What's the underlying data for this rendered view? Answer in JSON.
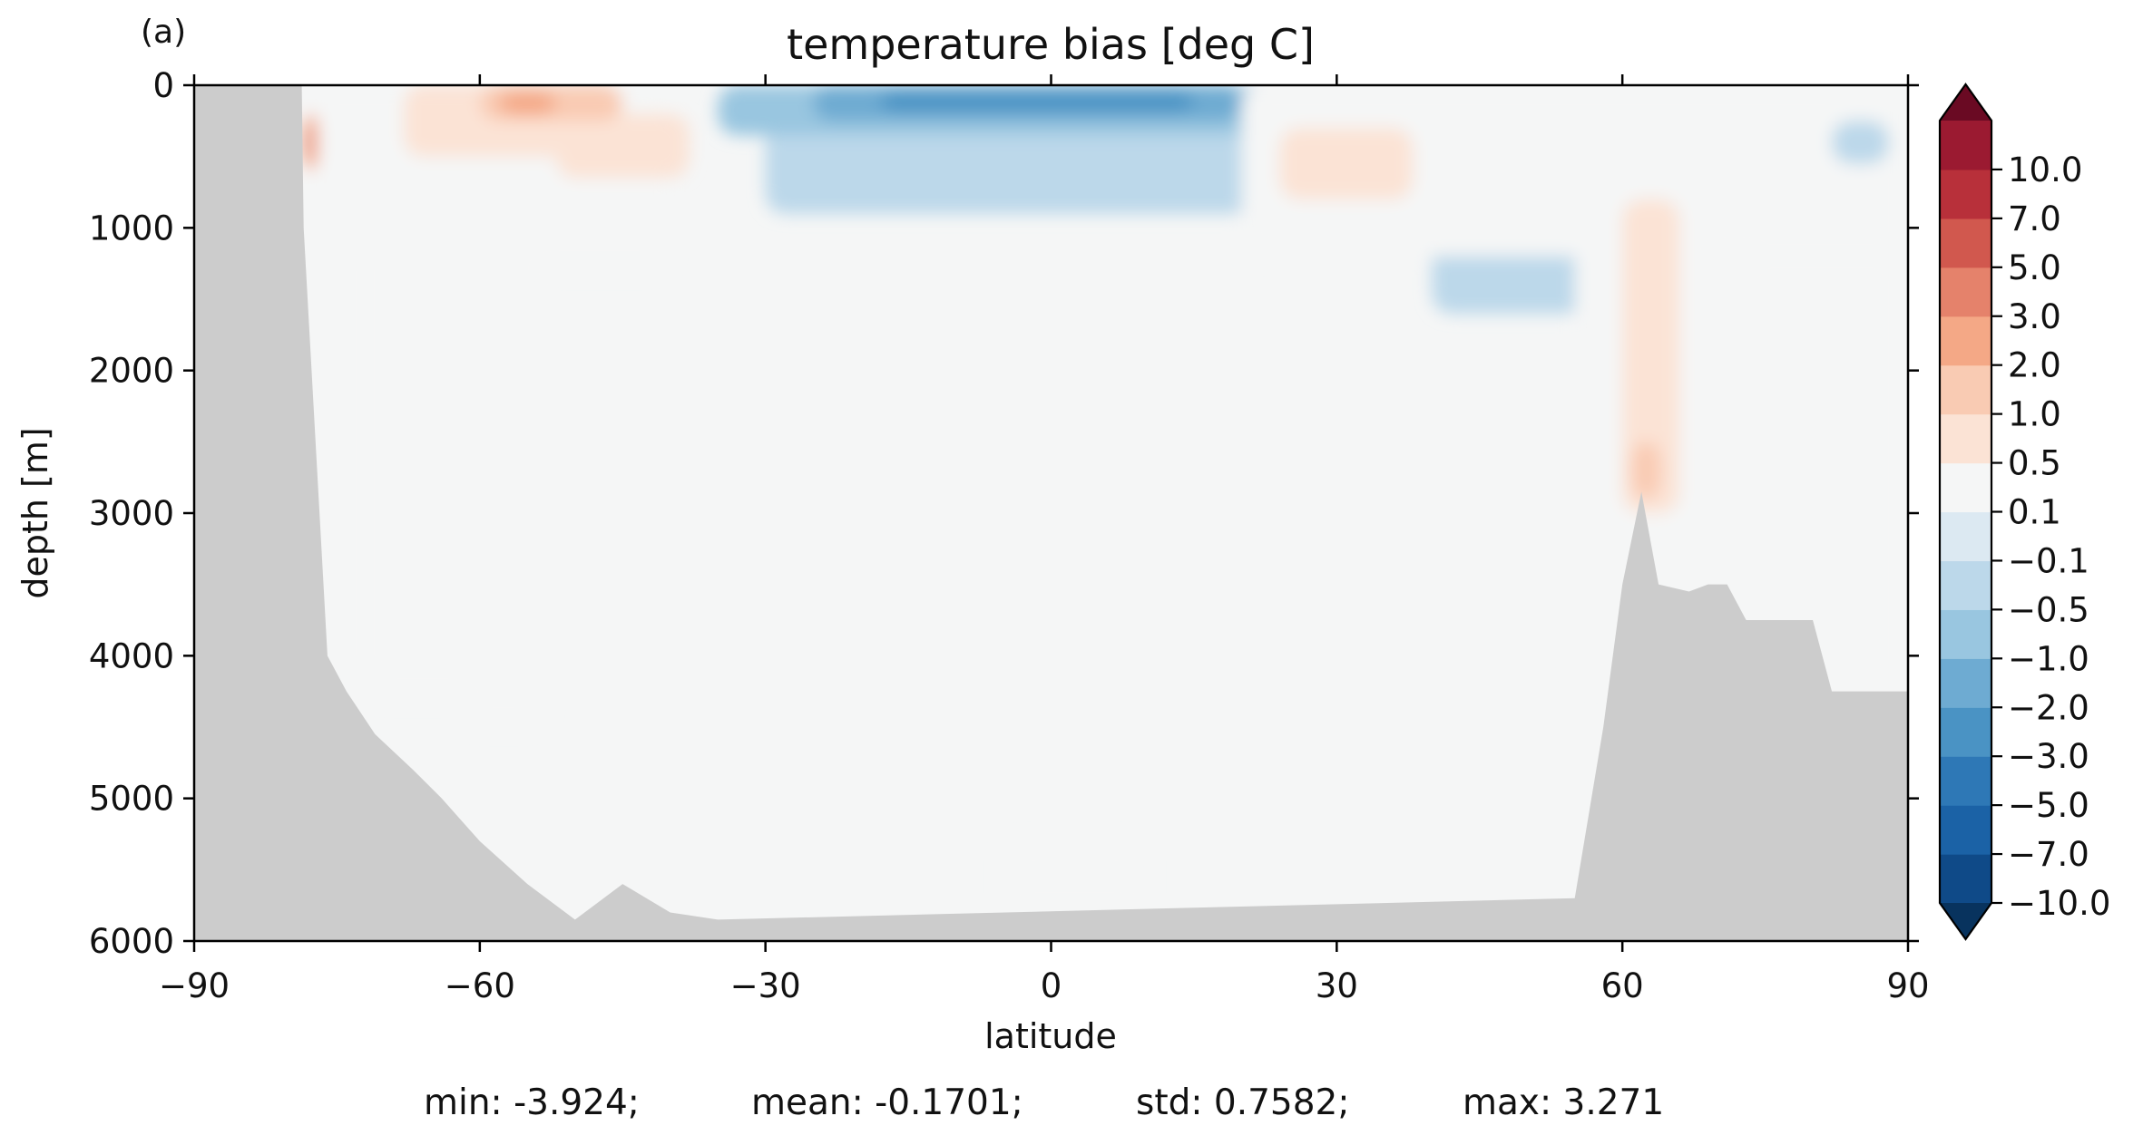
{
  "chart_data": {
    "type": "heatmap",
    "panel_label": "(a)",
    "title": "temperature bias [deg C]",
    "xlabel": "latitude",
    "ylabel": "depth [m]",
    "xlim": [
      -90,
      90
    ],
    "ylim": [
      6000,
      0
    ],
    "y_inverted": true,
    "xticks": [
      -90,
      -60,
      -30,
      0,
      30,
      60,
      90
    ],
    "xtick_labels": [
      "−90",
      "−60",
      "−30",
      "0",
      "30",
      "60",
      "90"
    ],
    "yticks": [
      0,
      1000,
      2000,
      3000,
      4000,
      5000,
      6000
    ],
    "ytick_labels": [
      "0",
      "1000",
      "2000",
      "3000",
      "4000",
      "5000",
      "6000"
    ],
    "colorbar": {
      "levels": [
        -10,
        -7,
        -5,
        -3,
        -2,
        -1,
        -0.5,
        -0.1,
        0.1,
        0.5,
        1,
        2,
        3,
        5,
        7,
        10
      ],
      "tick_labels": [
        "−10.0",
        "−7.0",
        "−5.0",
        "−3.0",
        "−2.0",
        "−1.0",
        "−0.5",
        "−0.1",
        "0.1",
        "0.5",
        "1.0",
        "2.0",
        "3.0",
        "5.0",
        "7.0",
        "10.0"
      ],
      "colors": [
        "#0f4a88",
        "#1b62a6",
        "#2e78b6",
        "#4a93c4",
        "#6eabd2",
        "#99c6e0",
        "#bcd8ea",
        "#dce9f2",
        "#f5f6f6",
        "#fbe3d5",
        "#f9cbb3",
        "#f4a886",
        "#e5826b",
        "#d1584e",
        "#b8303a",
        "#9b1a31"
      ],
      "under_color": "#08335e",
      "over_color": "#6a0a23",
      "extend": "both"
    },
    "land_color": "#cccccc",
    "bathymetry": [
      [
        -90,
        0
      ],
      [
        -78.7,
        0
      ],
      [
        -78.5,
        1000
      ],
      [
        -76,
        4000
      ],
      [
        -74,
        4250
      ],
      [
        -71,
        4550
      ],
      [
        -67,
        4800
      ],
      [
        -64,
        5000
      ],
      [
        -60,
        5300
      ],
      [
        -55,
        5600
      ],
      [
        -50,
        5850
      ],
      [
        -45,
        5600
      ],
      [
        -40,
        5800
      ],
      [
        -35,
        5850
      ],
      [
        55,
        5700
      ],
      [
        58,
        4500
      ],
      [
        60,
        3500
      ],
      [
        62,
        2850
      ],
      [
        63.8,
        3500
      ],
      [
        67,
        3550
      ],
      [
        69,
        3500
      ],
      [
        71,
        3500
      ],
      [
        73,
        3750
      ],
      [
        80,
        3750
      ],
      [
        82,
        4250
      ],
      [
        90,
        4250
      ]
    ],
    "regions": [
      {
        "level": 0.3,
        "lat": [
          -78,
          -40
        ],
        "depth": [
          0,
          1300
        ]
      },
      {
        "level": 0.3,
        "lat": [
          -78,
          -72
        ],
        "depth": [
          0,
          4200
        ]
      },
      {
        "level": 0.3,
        "lat": [
          -72,
          -60
        ],
        "depth": [
          500,
          4300
        ]
      },
      {
        "level": 0.3,
        "lat": [
          -62,
          -53
        ],
        "depth": [
          300,
          4500
        ]
      },
      {
        "level": 0.75,
        "lat": [
          -68,
          -45
        ],
        "depth": [
          0,
          500
        ]
      },
      {
        "level": 0.75,
        "lat": [
          -52,
          -38
        ],
        "depth": [
          200,
          650
        ]
      },
      {
        "level": 1.5,
        "lat": [
          -60,
          -45
        ],
        "depth": [
          0,
          250
        ]
      },
      {
        "level": 2.5,
        "lat": [
          -58,
          -52
        ],
        "depth": [
          50,
          200
        ]
      },
      {
        "level": 2.5,
        "lat": [
          -78.5,
          -77
        ],
        "depth": [
          200,
          600
        ]
      },
      {
        "level": 4,
        "lat": [
          -78.4,
          -77.6
        ],
        "depth": [
          300,
          500
        ]
      },
      {
        "level": -0.3,
        "lat": [
          -30,
          45
        ],
        "depth": [
          0,
          900
        ]
      },
      {
        "level": -0.3,
        "lat": [
          40,
          60
        ],
        "depth": [
          500,
          1600
        ]
      },
      {
        "level": -0.75,
        "lat": [
          -35,
          25
        ],
        "depth": [
          0,
          350
        ]
      },
      {
        "level": -1.5,
        "lat": [
          -25,
          20
        ],
        "depth": [
          0,
          250
        ]
      },
      {
        "level": -2.5,
        "lat": [
          -18,
          15
        ],
        "depth": [
          50,
          180
        ]
      },
      {
        "level": 0.3,
        "lat": [
          20,
          90
        ],
        "depth": [
          0,
          1200
        ]
      },
      {
        "level": 0.75,
        "lat": [
          24,
          38
        ],
        "depth": [
          300,
          800
        ]
      },
      {
        "level": 0.3,
        "lat": [
          55,
          70
        ],
        "depth": [
          700,
          4200
        ]
      },
      {
        "level": 0.75,
        "lat": [
          60,
          66
        ],
        "depth": [
          800,
          3000
        ]
      },
      {
        "level": 1.5,
        "lat": [
          61,
          64
        ],
        "depth": [
          2500,
          2900
        ]
      },
      {
        "level": 0.3,
        "lat": [
          72,
          90
        ],
        "depth": [
          1200,
          4200
        ]
      },
      {
        "level": 0.3,
        "lat": [
          -5,
          10
        ],
        "depth": [
          5300,
          5800
        ]
      },
      {
        "level": -0.3,
        "lat": [
          82,
          88
        ],
        "depth": [
          250,
          550
        ]
      }
    ]
  },
  "stats": {
    "min": "min: -3.924;",
    "mean": "mean: -0.1701;",
    "std": "std: 0.7582;",
    "max": "max: 3.271"
  }
}
